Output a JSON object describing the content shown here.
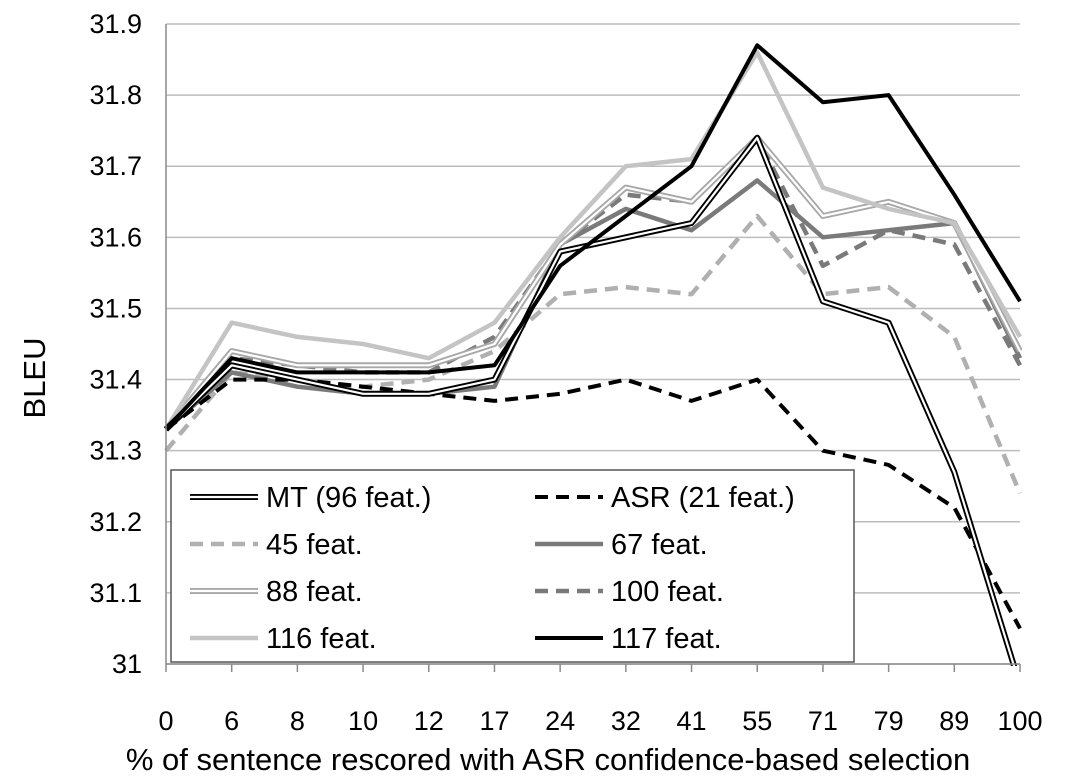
{
  "chart_data": {
    "type": "line",
    "title": "",
    "xlabel": "% of sentence rescored with ASR confidence-based selection",
    "ylabel": "BLEU",
    "x": [
      "0",
      "6",
      "8",
      "10",
      "12",
      "17",
      "24",
      "32",
      "41",
      "55",
      "71",
      "79",
      "89",
      "100"
    ],
    "ylim": [
      31,
      31.9
    ],
    "yticks": [
      "31",
      "31.1",
      "31.2",
      "31.3",
      "31.4",
      "31.5",
      "31.6",
      "31.7",
      "31.8",
      "31.9"
    ],
    "grid": "horizontal",
    "legend_position": "bottom-left",
    "series": [
      {
        "name": "MT (96 feat.)",
        "style": "double",
        "color": "#000000",
        "values": [
          31.33,
          31.42,
          31.4,
          31.38,
          31.38,
          31.4,
          31.58,
          31.6,
          31.62,
          31.74,
          31.51,
          31.48,
          31.27,
          30.97
        ]
      },
      {
        "name": "ASR (21 feat.)",
        "style": "dashed",
        "color": "#000000",
        "values": [
          31.33,
          31.4,
          31.4,
          31.39,
          31.38,
          31.37,
          31.38,
          31.4,
          31.37,
          31.4,
          31.3,
          31.28,
          31.22,
          31.05
        ]
      },
      {
        "name": "45 feat.",
        "style": "dashed",
        "color": "#b0b0b0",
        "values": [
          31.3,
          31.41,
          31.4,
          31.39,
          31.4,
          31.44,
          31.52,
          31.53,
          31.52,
          31.63,
          31.52,
          31.53,
          31.46,
          31.24
        ]
      },
      {
        "name": "67 feat.",
        "style": "solid",
        "color": "#7a7a7a",
        "values": [
          31.33,
          31.41,
          31.39,
          31.38,
          31.38,
          31.39,
          31.59,
          31.64,
          31.61,
          31.68,
          31.6,
          31.61,
          31.62,
          31.43
        ]
      },
      {
        "name": "88 feat.",
        "style": "double",
        "color": "#a8a8a8",
        "values": [
          31.33,
          31.44,
          31.42,
          31.42,
          31.42,
          31.45,
          31.59,
          31.67,
          31.65,
          31.74,
          31.63,
          31.65,
          31.62,
          31.44
        ]
      },
      {
        "name": "100 feat.",
        "style": "dashed",
        "color": "#7a7a7a",
        "values": [
          31.33,
          31.43,
          31.42,
          31.41,
          31.41,
          31.46,
          31.59,
          31.66,
          31.65,
          31.74,
          31.56,
          31.61,
          31.59,
          31.42
        ]
      },
      {
        "name": "116 feat.",
        "style": "solid",
        "color": "#c4c4c4",
        "values": [
          31.33,
          31.48,
          31.46,
          31.45,
          31.43,
          31.48,
          31.6,
          31.7,
          31.71,
          31.86,
          31.67,
          31.64,
          31.62,
          31.46
        ]
      },
      {
        "name": "117 feat.",
        "style": "solid",
        "color": "#000000",
        "values": [
          31.33,
          31.43,
          31.41,
          31.41,
          31.41,
          31.42,
          31.56,
          31.63,
          31.7,
          31.87,
          31.79,
          31.8,
          31.66,
          31.51
        ]
      }
    ],
    "legend_order": [
      "MT (96 feat.)",
      "ASR (21 feat.)",
      "45 feat.",
      "67 feat.",
      "88 feat.",
      "100 feat.",
      "116 feat.",
      "117 feat."
    ]
  }
}
